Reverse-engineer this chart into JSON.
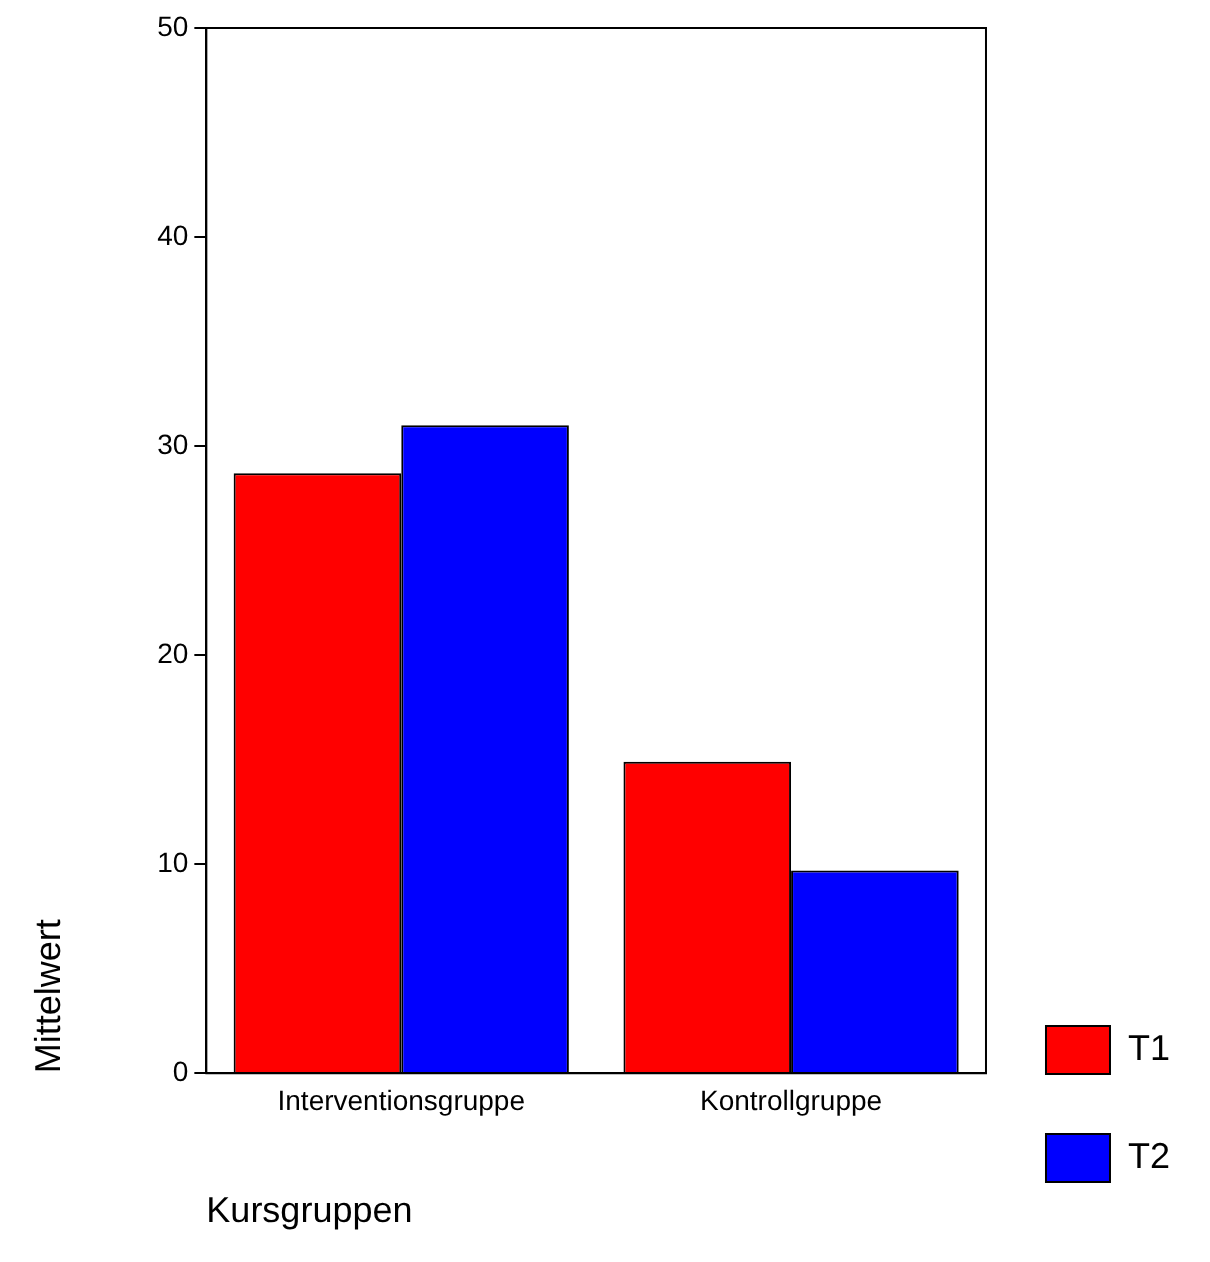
{
  "chart_data": {
    "type": "bar",
    "xlabel": "Kursgruppen",
    "ylabel": "Mittelwert",
    "categories": [
      "Interventionsgruppe",
      "Kontrollgruppe"
    ],
    "series": [
      {
        "name": "T1",
        "color": "#ff0000",
        "values": [
          28.7,
          14.9
        ]
      },
      {
        "name": "T2",
        "color": "#0000ff",
        "values": [
          31.0,
          9.7
        ]
      }
    ],
    "ylim": [
      0,
      50
    ],
    "yticks": [
      0,
      10,
      20,
      30,
      40,
      50
    ],
    "grid": false,
    "legend": "bottom right"
  }
}
